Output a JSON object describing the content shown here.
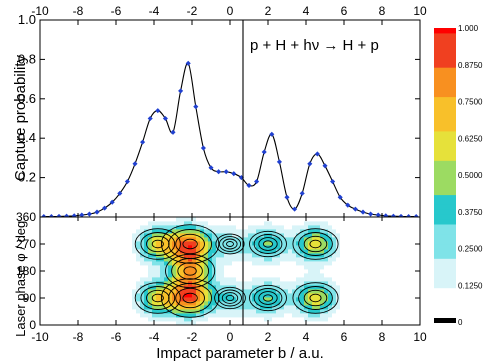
{
  "chart_data": [
    {
      "type": "line",
      "title": "",
      "annotation": "p + H + hν → H + p",
      "xlabel": "",
      "ylabel": "Capture probability",
      "xlim": [
        -10,
        10
      ],
      "ylim": [
        0,
        1.0
      ],
      "x_ticks": [
        "-10",
        "-8",
        "-6",
        "-4",
        "-2",
        "0",
        "2",
        "4",
        "6",
        "8",
        "10"
      ],
      "y_ticks": [
        "0.2",
        "0.4",
        "0.6",
        "0.8",
        "1.0"
      ],
      "grid": false,
      "series": [
        {
          "color": "#2040d0",
          "x": [
            -9.8,
            -9.4,
            -9.0,
            -8.6,
            -8.2,
            -7.8,
            -7.4,
            -7.0,
            -6.6,
            -6.2,
            -5.8,
            -5.4,
            -5.0,
            -4.6,
            -4.2,
            -3.8,
            -3.4,
            -3.0,
            -2.6,
            -2.2,
            -1.8,
            -1.4,
            -1.0,
            -0.6,
            -0.2,
            0.2,
            0.6,
            1.0,
            1.4,
            1.8,
            2.2,
            2.6,
            3.0,
            3.4,
            3.8,
            4.2,
            4.6,
            5.0,
            5.4,
            5.8,
            6.2,
            6.6,
            7.0,
            7.4,
            7.8,
            8.2,
            8.6,
            9.0,
            9.4,
            9.8
          ],
          "values": [
            0.002,
            0.002,
            0.003,
            0.004,
            0.006,
            0.01,
            0.015,
            0.025,
            0.045,
            0.075,
            0.12,
            0.18,
            0.27,
            0.38,
            0.5,
            0.54,
            0.5,
            0.43,
            0.64,
            0.78,
            0.56,
            0.35,
            0.25,
            0.23,
            0.23,
            0.22,
            0.2,
            0.16,
            0.18,
            0.33,
            0.42,
            0.28,
            0.1,
            0.04,
            0.12,
            0.27,
            0.32,
            0.26,
            0.18,
            0.1,
            0.06,
            0.04,
            0.025,
            0.015,
            0.01,
            0.006,
            0.004,
            0.003,
            0.002,
            0.002
          ]
        }
      ]
    },
    {
      "type": "heatmap",
      "title": "",
      "xlabel": "Impact parameter b / a.u.",
      "ylabel": "Laser phase φ / deg.",
      "xlim": [
        -10,
        10
      ],
      "ylim": [
        0,
        360
      ],
      "x_ticks": [
        "-10",
        "-8",
        "-6",
        "-4",
        "-2",
        "0",
        "2",
        "4",
        "6",
        "8",
        "10"
      ],
      "y_ticks": [
        "0",
        "90",
        "180",
        "270",
        "360"
      ],
      "colorbar": {
        "range": [
          0,
          1.0
        ],
        "labels": [
          "0",
          "0.1250",
          "0.2500",
          "0.3750",
          "0.5000",
          "0.6250",
          "0.7500",
          "0.8750",
          "1.000"
        ],
        "colors": [
          "#ffffff",
          "#d8f4f8",
          "#7fe3e8",
          "#27c8cc",
          "#9cdb62",
          "#e6e13a",
          "#f8c02a",
          "#f89020",
          "#f04020",
          "#ff0000"
        ]
      },
      "peaks": [
        {
          "b": -3.8,
          "phase": 270,
          "value": 0.58
        },
        {
          "b": -3.8,
          "phase": 90,
          "value": 0.58
        },
        {
          "b": -2.1,
          "phase": 270,
          "value": 0.82
        },
        {
          "b": -2.1,
          "phase": 90,
          "value": 0.82
        },
        {
          "b": -2.1,
          "phase": 180,
          "value": 0.66
        },
        {
          "b": 0.0,
          "phase": 270,
          "value": 0.25
        },
        {
          "b": 0.0,
          "phase": 90,
          "value": 0.3
        },
        {
          "b": 2.0,
          "phase": 270,
          "value": 0.42
        },
        {
          "b": 2.0,
          "phase": 90,
          "value": 0.42
        },
        {
          "b": 4.5,
          "phase": 270,
          "value": 0.58
        },
        {
          "b": 4.5,
          "phase": 90,
          "value": 0.58
        }
      ]
    }
  ]
}
